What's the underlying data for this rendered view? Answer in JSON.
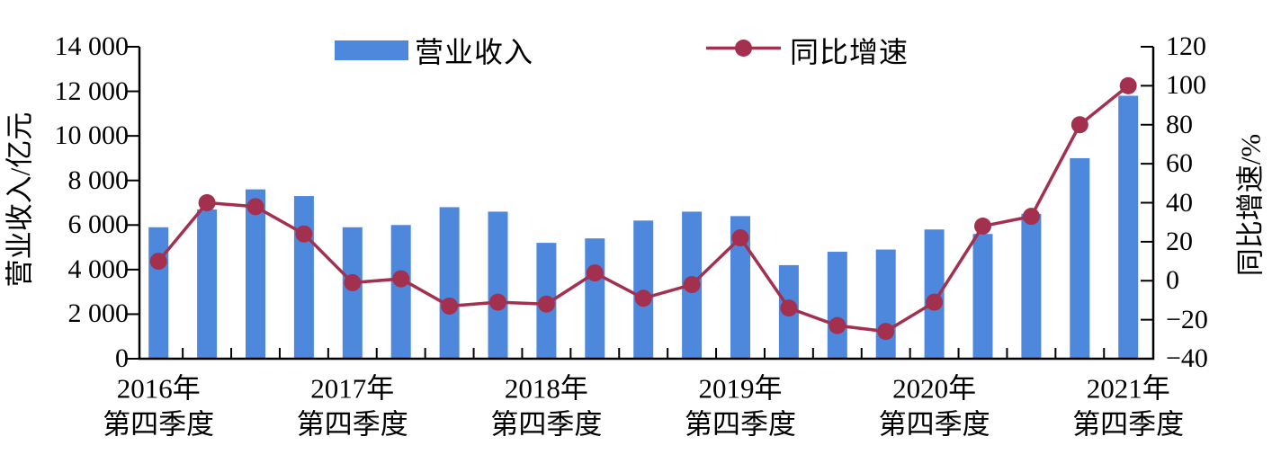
{
  "chart_data": {
    "type": "bar+line",
    "categories": [
      "2016Q4",
      "2017Q1",
      "2017Q2",
      "2017Q3",
      "2017Q4",
      "2018Q1",
      "2018Q2",
      "2018Q3",
      "2018Q4",
      "2019Q1",
      "2019Q2",
      "2019Q3",
      "2019Q4",
      "2020Q1",
      "2020Q2",
      "2020Q3",
      "2020Q4",
      "2021Q1",
      "2021Q2",
      "2021Q3",
      "2021Q4"
    ],
    "series": [
      {
        "name": "营业收入",
        "type": "bar",
        "axis": "left",
        "unit": "亿元",
        "color": "#4e88dd",
        "values": [
          5900,
          6700,
          7600,
          7300,
          5900,
          6000,
          6800,
          6600,
          5200,
          5400,
          6200,
          6600,
          6400,
          4200,
          4800,
          4900,
          5800,
          5600,
          6500,
          9000,
          11800
        ]
      },
      {
        "name": "同比增速",
        "type": "line",
        "axis": "right",
        "unit": "%",
        "color": "#a3304f",
        "values": [
          10,
          40,
          38,
          24,
          -1,
          1,
          -13,
          -11,
          -12,
          4,
          -9,
          -2,
          22,
          -14,
          -23,
          -26,
          -11,
          28,
          33,
          80,
          100
        ]
      }
    ],
    "left_axis": {
      "label": "营业收入/亿元",
      "min": 0,
      "max": 14000,
      "tick_step": 2000,
      "tick_labels": [
        "14 000",
        "12 000",
        "10 000",
        "8 000",
        "6 000",
        "4 000",
        "2 000",
        "0"
      ]
    },
    "right_axis": {
      "label": "同比增速/%",
      "min": -40,
      "max": 120,
      "tick_step": 20,
      "tick_labels": [
        "120",
        "100",
        "80",
        "60",
        "40",
        "20",
        "0",
        "−20",
        "−40"
      ]
    },
    "x_axis": {
      "labels": [
        {
          "year": "2016年",
          "quarter": "第四季度",
          "bar_index": 0
        },
        {
          "year": "2017年",
          "quarter": "第四季度",
          "bar_index": 4
        },
        {
          "year": "2018年",
          "quarter": "第四季度",
          "bar_index": 8
        },
        {
          "year": "2019年",
          "quarter": "第四季度",
          "bar_index": 12
        },
        {
          "year": "2020年",
          "quarter": "第四季度",
          "bar_index": 16
        },
        {
          "year": "2021年",
          "quarter": "第四季度",
          "bar_index": 20
        }
      ],
      "grid": false
    },
    "legend_position": "top"
  },
  "legend": {
    "items": [
      {
        "label": "营业收入",
        "swatch": "bar-swatch"
      },
      {
        "label": "同比增速",
        "swatch": "line-swatch"
      }
    ]
  }
}
